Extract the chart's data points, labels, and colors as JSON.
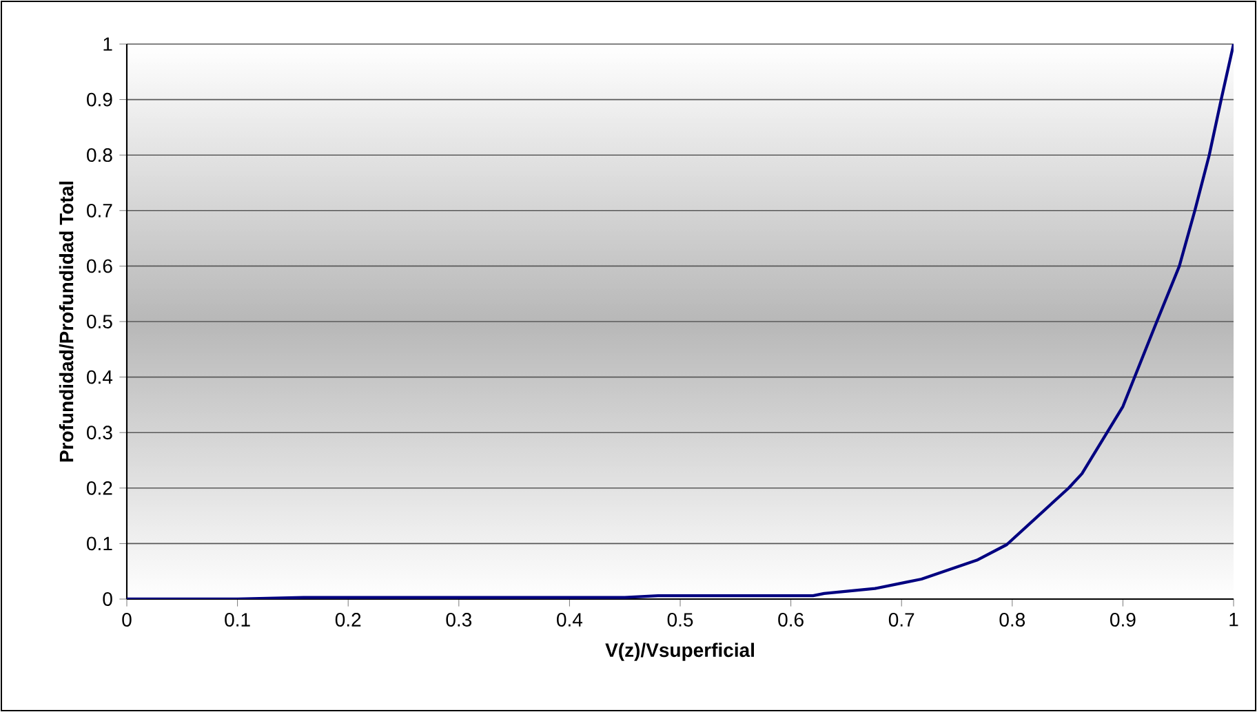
{
  "chart_data": {
    "type": "line",
    "xlabel": "V(z)/Vsuperficial",
    "ylabel": "Profundidad/Profundidad Total",
    "x": [
      0,
      0.1,
      0.16,
      0.45,
      0.48,
      0.62,
      0.63,
      0.676,
      0.703,
      0.718,
      0.768,
      0.795,
      0.851,
      0.863,
      0.9,
      0.929,
      0.951,
      0.965,
      0.978,
      0.989,
      1.0
    ],
    "series": [
      {
        "color": "#000080",
        "values": [
          0,
          0,
          0.003,
          0.003,
          0.006,
          0.006,
          0.01,
          0.019,
          0.03,
          0.036,
          0.07,
          0.098,
          0.2,
          0.226,
          0.347,
          0.492,
          0.6,
          0.7,
          0.8,
          0.902,
          1.0
        ]
      }
    ],
    "xlim": [
      0,
      1
    ],
    "ylim": [
      0,
      1
    ],
    "xticks": [
      0,
      0.1,
      0.2,
      0.3,
      0.4,
      0.5,
      0.6,
      0.7,
      0.8,
      0.9,
      1
    ],
    "yticks": [
      0,
      0.1,
      0.2,
      0.3,
      0.4,
      0.5,
      0.6,
      0.7,
      0.8,
      0.9,
      1
    ],
    "grid": "y",
    "marker": "none",
    "line_style": "solid"
  }
}
